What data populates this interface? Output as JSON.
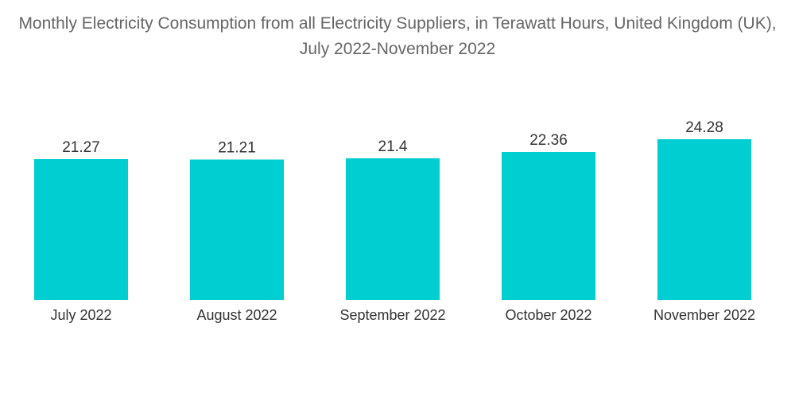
{
  "chart_data": {
    "type": "bar",
    "title": "Monthly Electricity Consumption from all Electricity Suppliers, in Terawatt Hours, United Kingdom (UK), July 2022-November 2022",
    "categories": [
      "July 2022",
      "August 2022",
      "September 2022",
      "October 2022",
      "November 2022"
    ],
    "values": [
      21.27,
      21.21,
      21.4,
      22.36,
      24.28
    ],
    "value_labels": [
      "21.27",
      "21.21",
      "21.4",
      "22.36",
      "24.28"
    ],
    "xlabel": "",
    "ylabel": "",
    "ylim": [
      0,
      24.28
    ],
    "grid": false,
    "legend": "none",
    "bar_color": "#00CED1"
  }
}
